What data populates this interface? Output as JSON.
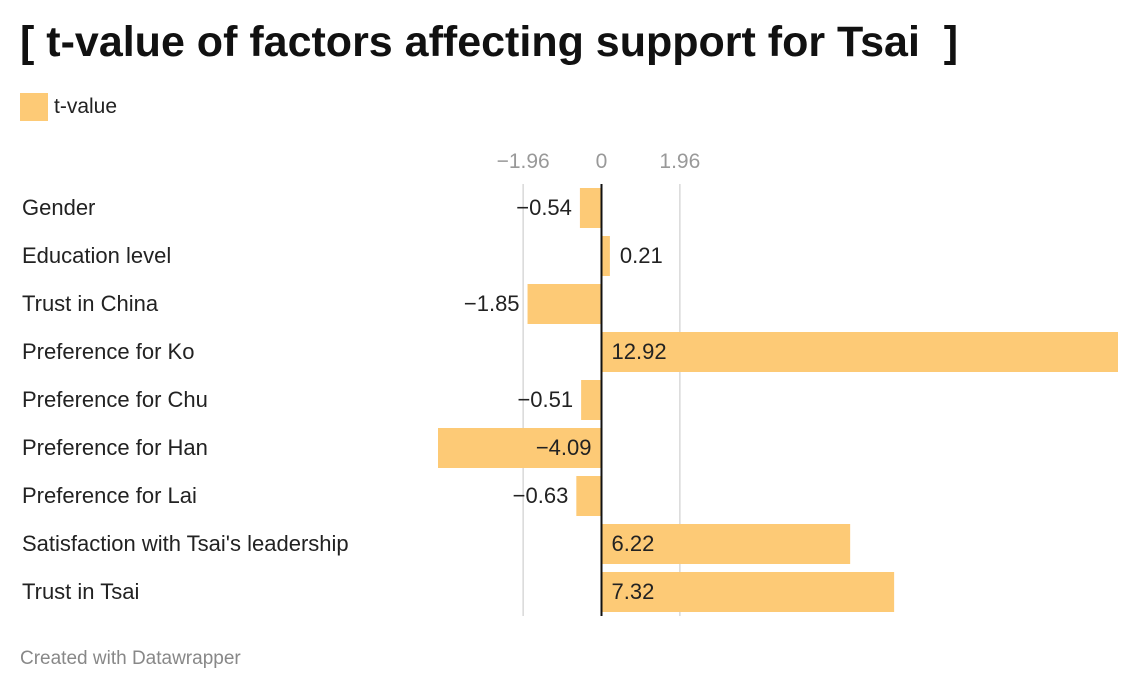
{
  "title": "[ t-value of factors affecting support for Tsai  ]",
  "footer": "Created with Datawrapper",
  "colors": {
    "bar": "#fdca76",
    "axis": "#111111",
    "grid": "#d9d9d9",
    "tick": "#999999"
  },
  "chart_data": {
    "type": "bar",
    "orientation": "horizontal",
    "title": "[ t-value of factors affecting support for Tsai  ]",
    "legend": [
      "t-value"
    ],
    "legend_position": "top-left",
    "categories": [
      "Gender",
      "Education level",
      "Trust in China",
      "Preference for Ko",
      "Preference for Chu",
      "Preference for Han",
      "Preference for Lai",
      "Satisfaction with Tsai's leadership",
      "Trust in Tsai"
    ],
    "series": [
      {
        "name": "t-value",
        "values": [
          -0.54,
          0.21,
          -1.85,
          12.92,
          -0.51,
          -4.09,
          -0.63,
          6.22,
          7.32
        ]
      }
    ],
    "value_labels": [
      "−0.54",
      "0.21",
      "−1.85",
      "12.92",
      "−0.51",
      "−4.09",
      "−0.63",
      "6.22",
      "7.32"
    ],
    "x_ticks": [
      -1.96,
      0,
      1.96
    ],
    "x_tick_labels": [
      "−1.96",
      "0",
      "1.96"
    ],
    "xlim": [
      -4.09,
      12.92
    ],
    "grid": true
  }
}
